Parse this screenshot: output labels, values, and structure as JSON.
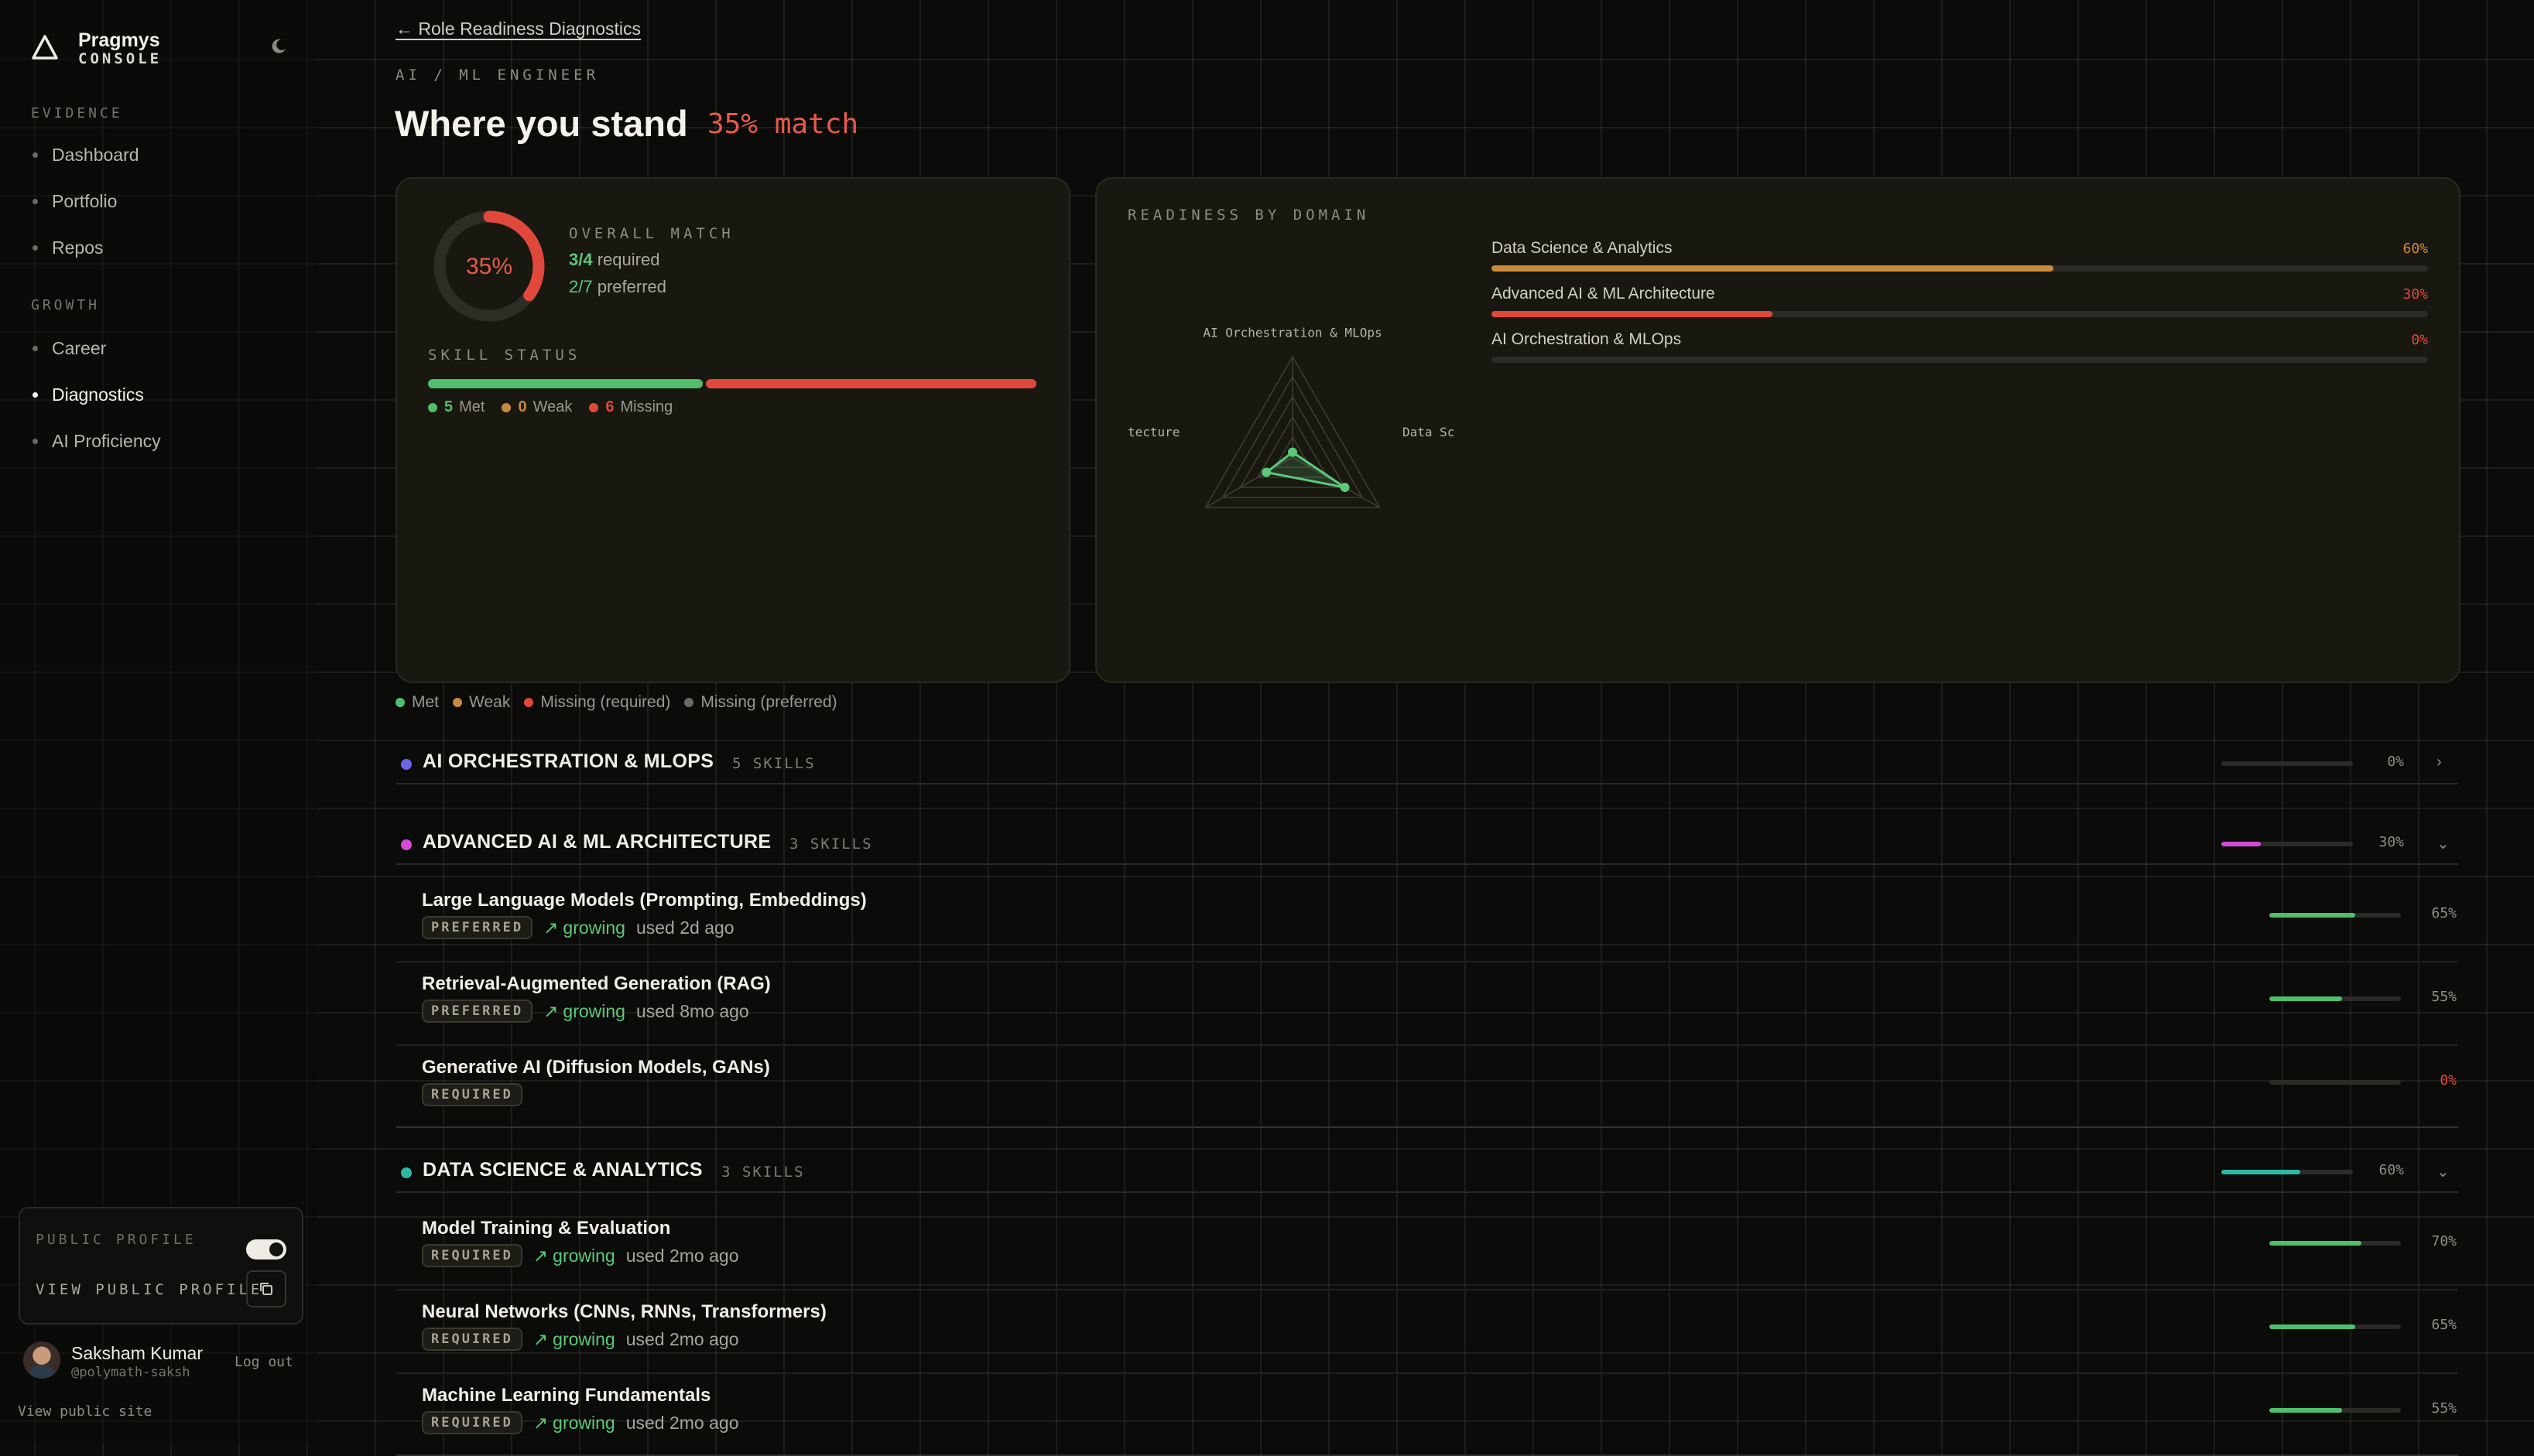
{
  "brand": {
    "name": "Pragmys",
    "sub": "CONSOLE"
  },
  "sidebar": {
    "evidence_label": "EVIDENCE",
    "growth_label": "GROWTH",
    "evidence_items": [
      {
        "label": "Dashboard"
      },
      {
        "label": "Portfolio"
      },
      {
        "label": "Repos"
      }
    ],
    "growth_items": [
      {
        "label": "Career"
      },
      {
        "label": "Diagnostics",
        "active": true
      },
      {
        "label": "AI Proficiency"
      }
    ],
    "public_profile_label": "PUBLIC PROFILE",
    "public_profile_enabled": true,
    "view_public_profile_label": "VIEW PUBLIC PROFILE",
    "user": {
      "name": "Saksham Kumar",
      "handle": "@polymath-saksh"
    },
    "logout_label": "Log out",
    "view_site_label": "View public site"
  },
  "header": {
    "back_label": "← Role Readiness Diagnostics",
    "role": "AI / ML ENGINEER",
    "title": "Where you stand",
    "match": "35% match"
  },
  "overall": {
    "gauge_label": "35%",
    "gauge_fraction": 0.35,
    "caption": "OVERALL MATCH",
    "required_count": "3/4",
    "required_label": "required",
    "preferred_count": "2/7",
    "preferred_label": "preferred",
    "skill_status_label": "SKILL STATUS",
    "status": [
      {
        "count": "5",
        "label": "Met",
        "color": "#4fbf6b",
        "value": 5
      },
      {
        "count": "0",
        "label": "Weak",
        "color": "#c98a3d",
        "value": 0
      },
      {
        "count": "6",
        "label": "Missing",
        "color": "#e0483c",
        "value": 6
      }
    ]
  },
  "readiness": {
    "caption": "READINESS BY DOMAIN",
    "radar_labels": {
      "top": "AI Orchestration & MLOps",
      "left": "tecture",
      "right": "Data Sc"
    },
    "domains": [
      {
        "name": "Data Science & Analytics",
        "pct": "60%",
        "value": 60,
        "color": "#c98a3d"
      },
      {
        "name": "Advanced AI & ML Architecture",
        "pct": "30%",
        "value": 30,
        "color": "#e0483c"
      },
      {
        "name": "AI Orchestration & MLOps",
        "pct": "0%",
        "value": 0,
        "color": "#e0483c"
      }
    ]
  },
  "legend": [
    {
      "label": "Met",
      "color": "#4fbf6b"
    },
    {
      "label": "Weak",
      "color": "#c98a3d"
    },
    {
      "label": "Missing (required)",
      "color": "#e0483c"
    },
    {
      "label": "Missing (preferred)",
      "color": "#6c6a63"
    }
  ],
  "domain_sections": [
    {
      "title": "AI ORCHESTRATION & MLOPS",
      "count": "5 SKILLS",
      "color": "#6b66e6",
      "pct": "0%",
      "value": 0,
      "expanded": false,
      "skills": []
    },
    {
      "title": "ADVANCED AI & ML ARCHITECTURE",
      "count": "3 SKILLS",
      "color": "#d54bd8",
      "pct": "30%",
      "value": 30,
      "expanded": true,
      "skills": [
        {
          "name": "Large Language Models (Prompting, Embeddings)",
          "badge": "PREFERRED",
          "trend": "growing",
          "used": "used 2d ago",
          "pct": "65%",
          "value": 65
        },
        {
          "name": "Retrieval-Augmented Generation (RAG)",
          "badge": "PREFERRED",
          "trend": "growing",
          "used": "used 8mo ago",
          "pct": "55%",
          "value": 55
        },
        {
          "name": "Generative AI (Diffusion Models, GANs)",
          "badge": "REQUIRED",
          "trend": "",
          "used": "",
          "pct": "0%",
          "value": 0
        }
      ]
    },
    {
      "title": "DATA SCIENCE & ANALYTICS",
      "count": "3 SKILLS",
      "color": "#2fb8a4",
      "pct": "60%",
      "value": 60,
      "expanded": true,
      "skills": [
        {
          "name": "Model Training & Evaluation",
          "badge": "REQUIRED",
          "trend": "growing",
          "used": "used 2mo ago",
          "pct": "70%",
          "value": 70
        },
        {
          "name": "Neural Networks (CNNs, RNNs, Transformers)",
          "badge": "REQUIRED",
          "trend": "growing",
          "used": "used 2mo ago",
          "pct": "65%",
          "value": 65
        },
        {
          "name": "Machine Learning Fundamentals",
          "badge": "REQUIRED",
          "trend": "growing",
          "used": "used 2mo ago",
          "pct": "55%",
          "value": 55
        }
      ]
    }
  ]
}
